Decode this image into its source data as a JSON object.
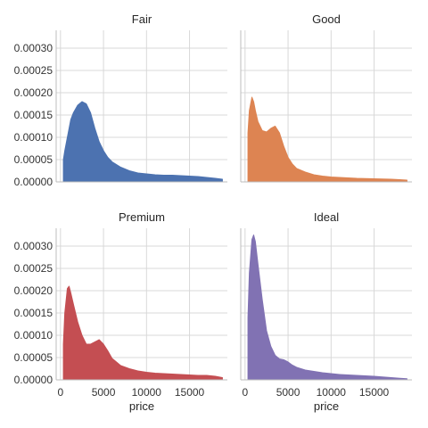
{
  "chart_data": {
    "type": "area",
    "xlabel": "price",
    "ylabel": "",
    "xlim": [
      -500,
      19400
    ],
    "ylim": [
      0,
      0.00034
    ],
    "x_ticks": [
      0,
      5000,
      10000,
      15000
    ],
    "x_tick_labels": [
      "0",
      "5000",
      "10000",
      "15000"
    ],
    "y_ticks": [
      0,
      5e-05,
      0.0001,
      0.00015,
      0.0002,
      0.00025,
      0.0003
    ],
    "y_tick_labels": [
      "0.00000",
      "0.00005",
      "0.00010",
      "0.00015",
      "0.00020",
      "0.00025",
      "0.00030"
    ],
    "grid": true,
    "x": [
      337,
      500,
      800,
      1000,
      1200,
      1500,
      2000,
      2500,
      3000,
      3500,
      4000,
      4500,
      5000,
      5500,
      6000,
      7000,
      8000,
      9000,
      10000,
      11000,
      12000,
      13000,
      14000,
      15000,
      16000,
      17000,
      18000,
      18823
    ],
    "panels": [
      {
        "title": "Fair",
        "color": "#4c72b0",
        "values": [
          5e-05,
          7e-05,
          0.0001,
          0.00012,
          0.00014,
          0.000155,
          0.000172,
          0.00018,
          0.000175,
          0.000155,
          0.00012,
          9e-05,
          7e-05,
          5.5e-05,
          4.5e-05,
          3.3e-05,
          2.5e-05,
          2e-05,
          1.8e-05,
          1.6e-05,
          1.5e-05,
          1.5e-05,
          1.4e-05,
          1.3e-05,
          1.2e-05,
          1e-05,
          8e-06,
          6e-06
        ]
      },
      {
        "title": "Good",
        "color": "#dd8452",
        "values": [
          0.00011,
          0.00016,
          0.00019,
          0.00018,
          0.00016,
          0.000135,
          0.000115,
          0.000112,
          0.00012,
          0.000125,
          0.00011,
          8e-05,
          5.5e-05,
          4e-05,
          3e-05,
          2.2e-05,
          1.6e-05,
          1.3e-05,
          1.1e-05,
          1e-05,
          9e-06,
          8e-06,
          7.5e-06,
          7e-06,
          6.5e-06,
          6e-06,
          5e-06,
          4e-06
        ]
      },
      {
        "title": "Premium",
        "color": "#c44e52",
        "values": [
          8e-05,
          0.00015,
          0.000205,
          0.00021,
          0.000195,
          0.00017,
          0.00013,
          0.0001,
          8e-05,
          8e-05,
          8.5e-05,
          9e-05,
          8e-05,
          6.5e-05,
          4.8e-05,
          3.2e-05,
          2.5e-05,
          2e-05,
          1.7e-05,
          1.5e-05,
          1.4e-05,
          1.3e-05,
          1.2e-05,
          1.1e-05,
          1e-05,
          1e-05,
          8e-06,
          5e-06
        ]
      },
      {
        "title": "Ideal",
        "color": "#8172b3",
        "values": [
          0.00014,
          0.00024,
          0.000315,
          0.000325,
          0.00031,
          0.00026,
          0.00018,
          0.00011,
          7.5e-05,
          5.5e-05,
          4.7e-05,
          4.5e-05,
          4e-05,
          3.3e-05,
          2.8e-05,
          2.2e-05,
          1.9e-05,
          1.6e-05,
          1.4e-05,
          1.2e-05,
          1.1e-05,
          1e-05,
          9e-06,
          8e-06,
          6.5e-06,
          5e-06,
          3.5e-06,
          2.5e-06
        ]
      }
    ]
  }
}
